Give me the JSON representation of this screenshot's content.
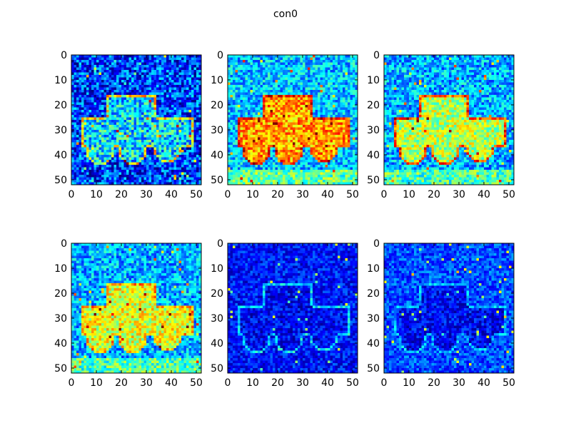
{
  "figure": {
    "title": "con0"
  },
  "colormap": [
    "#00007f",
    "#0000ff",
    "#007fff",
    "#00ffff",
    "#7fff7f",
    "#ffff00",
    "#ff7f00",
    "#ff0000",
    "#7f0000"
  ],
  "chart_data": [
    {
      "type": "heatmap",
      "title": "",
      "xlim": [
        0,
        52
      ],
      "ylim": [
        52,
        0
      ],
      "xticks": [
        0,
        10,
        20,
        30,
        40,
        50
      ],
      "yticks": [
        0,
        10,
        20,
        30,
        40,
        50
      ],
      "xtick_labels": [
        "0",
        "10",
        "20",
        "30",
        "40",
        "50"
      ],
      "ytick_labels": [
        "0",
        "10",
        "20",
        "30",
        "40",
        "50"
      ],
      "background_level": 0.18,
      "truck_level": 0.35,
      "edge_level": 0.62,
      "noise": 0.18
    },
    {
      "type": "heatmap",
      "title": "",
      "xlim": [
        0,
        52
      ],
      "ylim": [
        52,
        0
      ],
      "xticks": [
        0,
        10,
        20,
        30,
        40,
        50
      ],
      "yticks": [
        0,
        10,
        20,
        30,
        40,
        50
      ],
      "xtick_labels": [
        "0",
        "10",
        "20",
        "30",
        "40",
        "50"
      ],
      "ytick_labels": [
        "0",
        "10",
        "20",
        "30",
        "40",
        "50"
      ],
      "background_level": 0.32,
      "truck_level": 0.72,
      "edge_level": 0.85,
      "noise": 0.14
    },
    {
      "type": "heatmap",
      "title": "",
      "xlim": [
        0,
        52
      ],
      "ylim": [
        52,
        0
      ],
      "xticks": [
        0,
        10,
        20,
        30,
        40,
        50
      ],
      "yticks": [
        0,
        10,
        20,
        30,
        40,
        50
      ],
      "xtick_labels": [
        "0",
        "10",
        "20",
        "30",
        "40",
        "50"
      ],
      "ytick_labels": [
        "0",
        "10",
        "20",
        "30",
        "40",
        "50"
      ],
      "background_level": 0.3,
      "truck_level": 0.55,
      "edge_level": 0.8,
      "noise": 0.14
    },
    {
      "type": "heatmap",
      "title": "",
      "xlim": [
        0,
        52
      ],
      "ylim": [
        52,
        0
      ],
      "xticks": [
        0,
        10,
        20,
        30,
        40,
        50
      ],
      "yticks": [
        0,
        10,
        20,
        30,
        40,
        50
      ],
      "xtick_labels": [
        "0",
        "10",
        "20",
        "30",
        "40",
        "50"
      ],
      "ytick_labels": [
        "0",
        "10",
        "20",
        "30",
        "40",
        "50"
      ],
      "background_level": 0.3,
      "truck_level": 0.6,
      "edge_level": 0.7,
      "noise": 0.14
    },
    {
      "type": "heatmap",
      "title": "",
      "xlim": [
        0,
        52
      ],
      "ylim": [
        52,
        0
      ],
      "xticks": [
        0,
        10,
        20,
        30,
        40,
        50
      ],
      "yticks": [
        0,
        10,
        20,
        30,
        40,
        50
      ],
      "xtick_labels": [
        "0",
        "10",
        "20",
        "30",
        "40",
        "50"
      ],
      "ytick_labels": [
        "0",
        "10",
        "20",
        "30",
        "40",
        "50"
      ],
      "background_level": 0.14,
      "truck_level": 0.12,
      "edge_level": 0.35,
      "noise": 0.1
    },
    {
      "type": "heatmap",
      "title": "",
      "xlim": [
        0,
        52
      ],
      "ylim": [
        52,
        0
      ],
      "xticks": [
        0,
        10,
        20,
        30,
        40,
        50
      ],
      "yticks": [
        0,
        10,
        20,
        30,
        40,
        50
      ],
      "xtick_labels": [
        "0",
        "10",
        "20",
        "30",
        "40",
        "50"
      ],
      "ytick_labels": [
        "0",
        "10",
        "20",
        "30",
        "40",
        "50"
      ],
      "background_level": 0.2,
      "truck_level": 0.12,
      "edge_level": 0.3,
      "noise": 0.1
    }
  ]
}
